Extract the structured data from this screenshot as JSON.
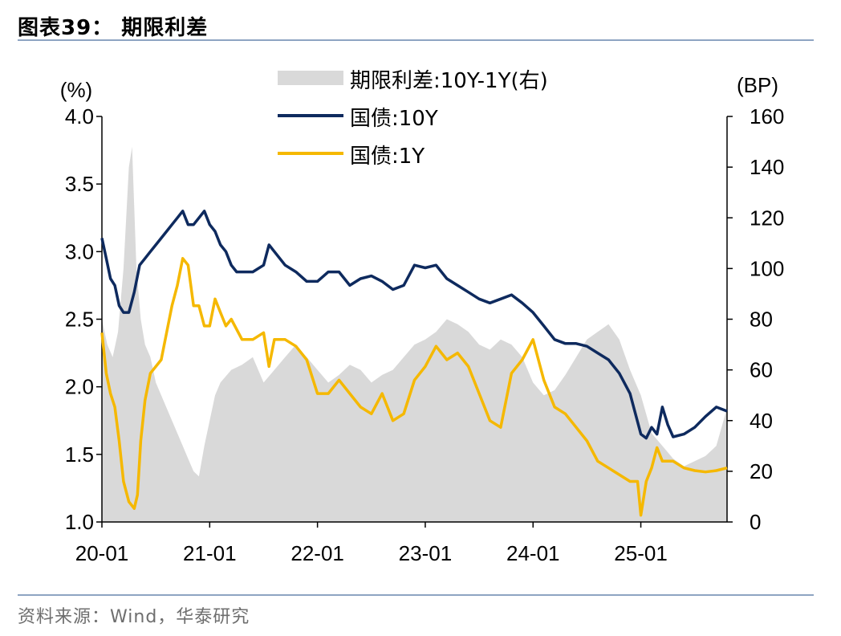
{
  "figure": {
    "title": "图表39：  期限利差",
    "source": "资料来源：Wind，华泰研究"
  },
  "chart_data": {
    "type": "line+area",
    "title": "期限利差",
    "left_axis": {
      "label": "(%)",
      "range": [
        1.0,
        4.0
      ],
      "ticks": [
        "1.0",
        "1.5",
        "2.0",
        "2.5",
        "3.0",
        "3.5",
        "4.0"
      ]
    },
    "right_axis": {
      "label": "(BP)",
      "range": [
        0,
        160
      ],
      "ticks": [
        "0",
        "20",
        "40",
        "60",
        "80",
        "100",
        "120",
        "140",
        "160"
      ]
    },
    "x_axis": {
      "ticks": [
        "20-01",
        "21-01",
        "22-01",
        "23-01",
        "24-01",
        "25-01"
      ]
    },
    "legend_position": "top-center",
    "series": [
      {
        "name": "期限利差:10Y-1Y(右)",
        "kind": "area",
        "axis": "right",
        "color": "#d9d9d9",
        "x": [
          2020.0,
          2020.05,
          2020.1,
          2020.15,
          2020.2,
          2020.25,
          2020.28,
          2020.32,
          2020.36,
          2020.4,
          2020.45,
          2020.5,
          2020.55,
          2020.6,
          2020.65,
          2020.7,
          2020.75,
          2020.8,
          2020.85,
          2020.9,
          2020.95,
          2021.0,
          2021.05,
          2021.1,
          2021.2,
          2021.3,
          2021.4,
          2021.5,
          2021.6,
          2021.7,
          2021.8,
          2021.9,
          2022.0,
          2022.1,
          2022.2,
          2022.3,
          2022.4,
          2022.5,
          2022.6,
          2022.7,
          2022.8,
          2022.9,
          2023.0,
          2023.1,
          2023.2,
          2023.3,
          2023.4,
          2023.5,
          2023.6,
          2023.7,
          2023.8,
          2023.9,
          2024.0,
          2024.1,
          2024.2,
          2024.3,
          2024.4,
          2024.5,
          2024.6,
          2024.7,
          2024.8,
          2024.9,
          2025.0,
          2025.1,
          2025.2,
          2025.3,
          2025.4,
          2025.5,
          2025.6,
          2025.7,
          2025.8
        ],
        "values": [
          80,
          70,
          65,
          75,
          100,
          140,
          148,
          100,
          80,
          70,
          65,
          55,
          50,
          45,
          40,
          35,
          30,
          25,
          20,
          18,
          30,
          40,
          50,
          55,
          60,
          62,
          65,
          55,
          60,
          65,
          70,
          65,
          60,
          55,
          58,
          62,
          60,
          55,
          58,
          60,
          65,
          70,
          72,
          75,
          80,
          78,
          75,
          70,
          68,
          72,
          70,
          65,
          55,
          50,
          52,
          58,
          65,
          72,
          75,
          78,
          72,
          60,
          50,
          35,
          30,
          25,
          22,
          24,
          26,
          30,
          45
        ]
      },
      {
        "name": "国债:10Y",
        "kind": "line",
        "axis": "left",
        "color": "#0e2a5e",
        "x": [
          2020.0,
          2020.04,
          2020.08,
          2020.12,
          2020.16,
          2020.2,
          2020.25,
          2020.3,
          2020.35,
          2020.4,
          2020.45,
          2020.5,
          2020.55,
          2020.6,
          2020.65,
          2020.7,
          2020.75,
          2020.8,
          2020.85,
          2020.9,
          2020.95,
          2021.0,
          2021.05,
          2021.1,
          2021.15,
          2021.2,
          2021.25,
          2021.3,
          2021.35,
          2021.4,
          2021.5,
          2021.55,
          2021.6,
          2021.7,
          2021.8,
          2021.9,
          2022.0,
          2022.1,
          2022.2,
          2022.3,
          2022.4,
          2022.5,
          2022.6,
          2022.7,
          2022.8,
          2022.9,
          2023.0,
          2023.1,
          2023.2,
          2023.3,
          2023.4,
          2023.5,
          2023.6,
          2023.7,
          2023.8,
          2023.9,
          2024.0,
          2024.1,
          2024.2,
          2024.3,
          2024.4,
          2024.5,
          2024.6,
          2024.7,
          2024.8,
          2024.9,
          2025.0,
          2025.05,
          2025.1,
          2025.15,
          2025.2,
          2025.25,
          2025.3,
          2025.4,
          2025.5,
          2025.6,
          2025.7,
          2025.8
        ],
        "values": [
          3.1,
          2.95,
          2.8,
          2.75,
          2.6,
          2.55,
          2.55,
          2.7,
          2.9,
          2.95,
          3.0,
          3.05,
          3.1,
          3.15,
          3.2,
          3.25,
          3.3,
          3.2,
          3.2,
          3.25,
          3.3,
          3.2,
          3.15,
          3.05,
          3.0,
          2.9,
          2.85,
          2.85,
          2.85,
          2.85,
          2.9,
          3.05,
          3.0,
          2.9,
          2.85,
          2.78,
          2.78,
          2.85,
          2.85,
          2.75,
          2.8,
          2.82,
          2.78,
          2.72,
          2.75,
          2.9,
          2.88,
          2.9,
          2.8,
          2.75,
          2.7,
          2.65,
          2.62,
          2.65,
          2.68,
          2.62,
          2.55,
          2.45,
          2.35,
          2.32,
          2.32,
          2.3,
          2.25,
          2.2,
          2.1,
          1.95,
          1.65,
          1.62,
          1.7,
          1.65,
          1.85,
          1.72,
          1.63,
          1.65,
          1.7,
          1.78,
          1.85,
          1.82
        ]
      },
      {
        "name": "国债:1Y",
        "kind": "line",
        "axis": "left",
        "color": "#f5b800",
        "x": [
          2020.0,
          2020.04,
          2020.08,
          2020.12,
          2020.16,
          2020.2,
          2020.25,
          2020.3,
          2020.33,
          2020.36,
          2020.4,
          2020.45,
          2020.5,
          2020.55,
          2020.6,
          2020.65,
          2020.7,
          2020.75,
          2020.8,
          2020.85,
          2020.9,
          2020.95,
          2021.0,
          2021.05,
          2021.1,
          2021.15,
          2021.2,
          2021.3,
          2021.4,
          2021.5,
          2021.55,
          2021.6,
          2021.7,
          2021.8,
          2021.9,
          2022.0,
          2022.1,
          2022.2,
          2022.3,
          2022.4,
          2022.5,
          2022.6,
          2022.7,
          2022.8,
          2022.9,
          2023.0,
          2023.1,
          2023.2,
          2023.3,
          2023.4,
          2023.5,
          2023.6,
          2023.7,
          2023.8,
          2023.9,
          2024.0,
          2024.1,
          2024.2,
          2024.3,
          2024.4,
          2024.5,
          2024.6,
          2024.7,
          2024.8,
          2024.9,
          2024.97,
          2025.0,
          2025.05,
          2025.1,
          2025.15,
          2025.2,
          2025.25,
          2025.3,
          2025.4,
          2025.5,
          2025.6,
          2025.7,
          2025.8
        ],
        "values": [
          2.4,
          2.1,
          1.95,
          1.85,
          1.6,
          1.3,
          1.15,
          1.1,
          1.2,
          1.6,
          1.9,
          2.1,
          2.15,
          2.2,
          2.4,
          2.6,
          2.75,
          2.95,
          2.9,
          2.6,
          2.6,
          2.45,
          2.45,
          2.65,
          2.55,
          2.45,
          2.5,
          2.35,
          2.35,
          2.4,
          2.15,
          2.35,
          2.35,
          2.3,
          2.2,
          1.95,
          1.95,
          2.05,
          1.95,
          1.85,
          1.8,
          1.95,
          1.75,
          1.8,
          2.05,
          2.15,
          2.3,
          2.2,
          2.25,
          2.15,
          1.95,
          1.75,
          1.7,
          2.1,
          2.2,
          2.35,
          2.05,
          1.85,
          1.8,
          1.7,
          1.6,
          1.45,
          1.4,
          1.35,
          1.3,
          1.3,
          1.05,
          1.3,
          1.4,
          1.55,
          1.45,
          1.45,
          1.45,
          1.4,
          1.38,
          1.37,
          1.38,
          1.4
        ]
      }
    ]
  }
}
